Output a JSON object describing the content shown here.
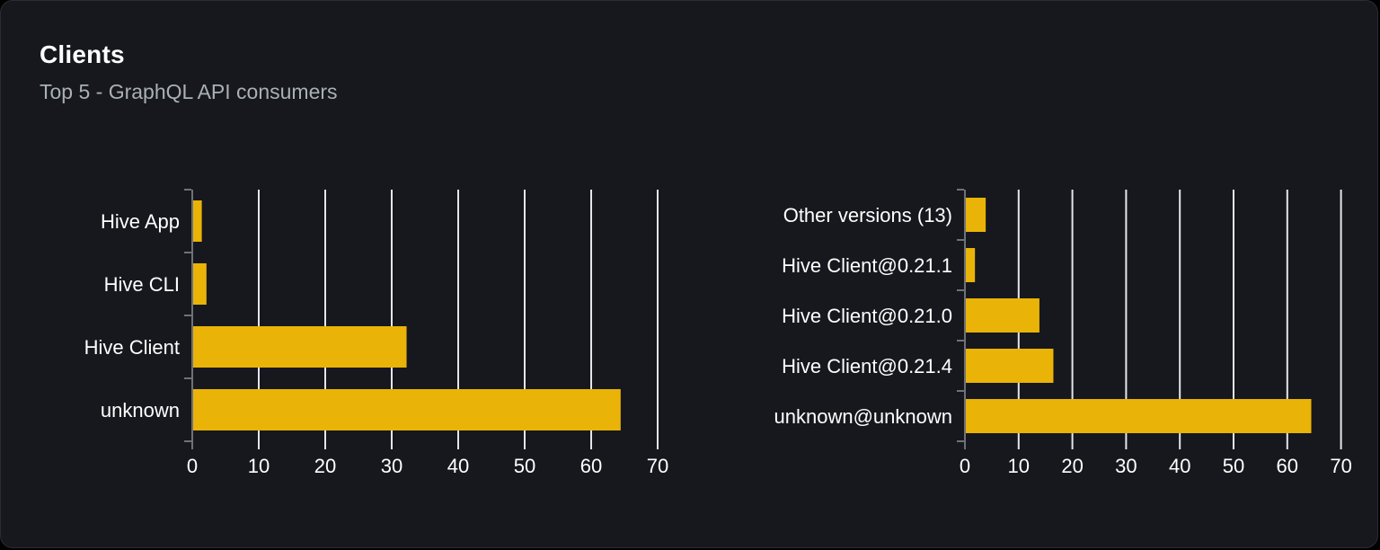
{
  "header": {
    "title": "Clients",
    "subtitle": "Top 5 - GraphQL API consumers"
  },
  "theme": {
    "page_bg": "#000000",
    "card_bg": "#16181d",
    "card_border": "#2a2d33",
    "bar_color": "#eab308",
    "grid_color": "#e3e6ec",
    "axis_color": "#6e7277",
    "label_color": "#ffffff",
    "subtitle_color": "#aab0b7"
  },
  "chart_data": [
    {
      "type": "bar",
      "orientation": "horizontal",
      "name": "clients-by-name",
      "categories": [
        "Hive App",
        "Hive CLI",
        "Hive Client",
        "unknown"
      ],
      "values": [
        1.3,
        2,
        32.1,
        64.3
      ],
      "xticks": [
        0,
        10,
        20,
        30,
        40,
        50,
        60,
        70
      ],
      "xlim": [
        0,
        70
      ],
      "grid": true,
      "legend": false
    },
    {
      "type": "bar",
      "orientation": "horizontal",
      "name": "clients-by-version",
      "categories": [
        "Other versions (13)",
        "Hive Client@0.21.1",
        "Hive Client@0.21.0",
        "Hive Client@0.21.4",
        "unknown@unknown"
      ],
      "values": [
        3.7,
        1.7,
        13.7,
        16.3,
        64.3
      ],
      "xticks": [
        0,
        10,
        20,
        30,
        40,
        50,
        60,
        70
      ],
      "xlim": [
        0,
        70
      ],
      "grid": true,
      "legend": false
    }
  ]
}
